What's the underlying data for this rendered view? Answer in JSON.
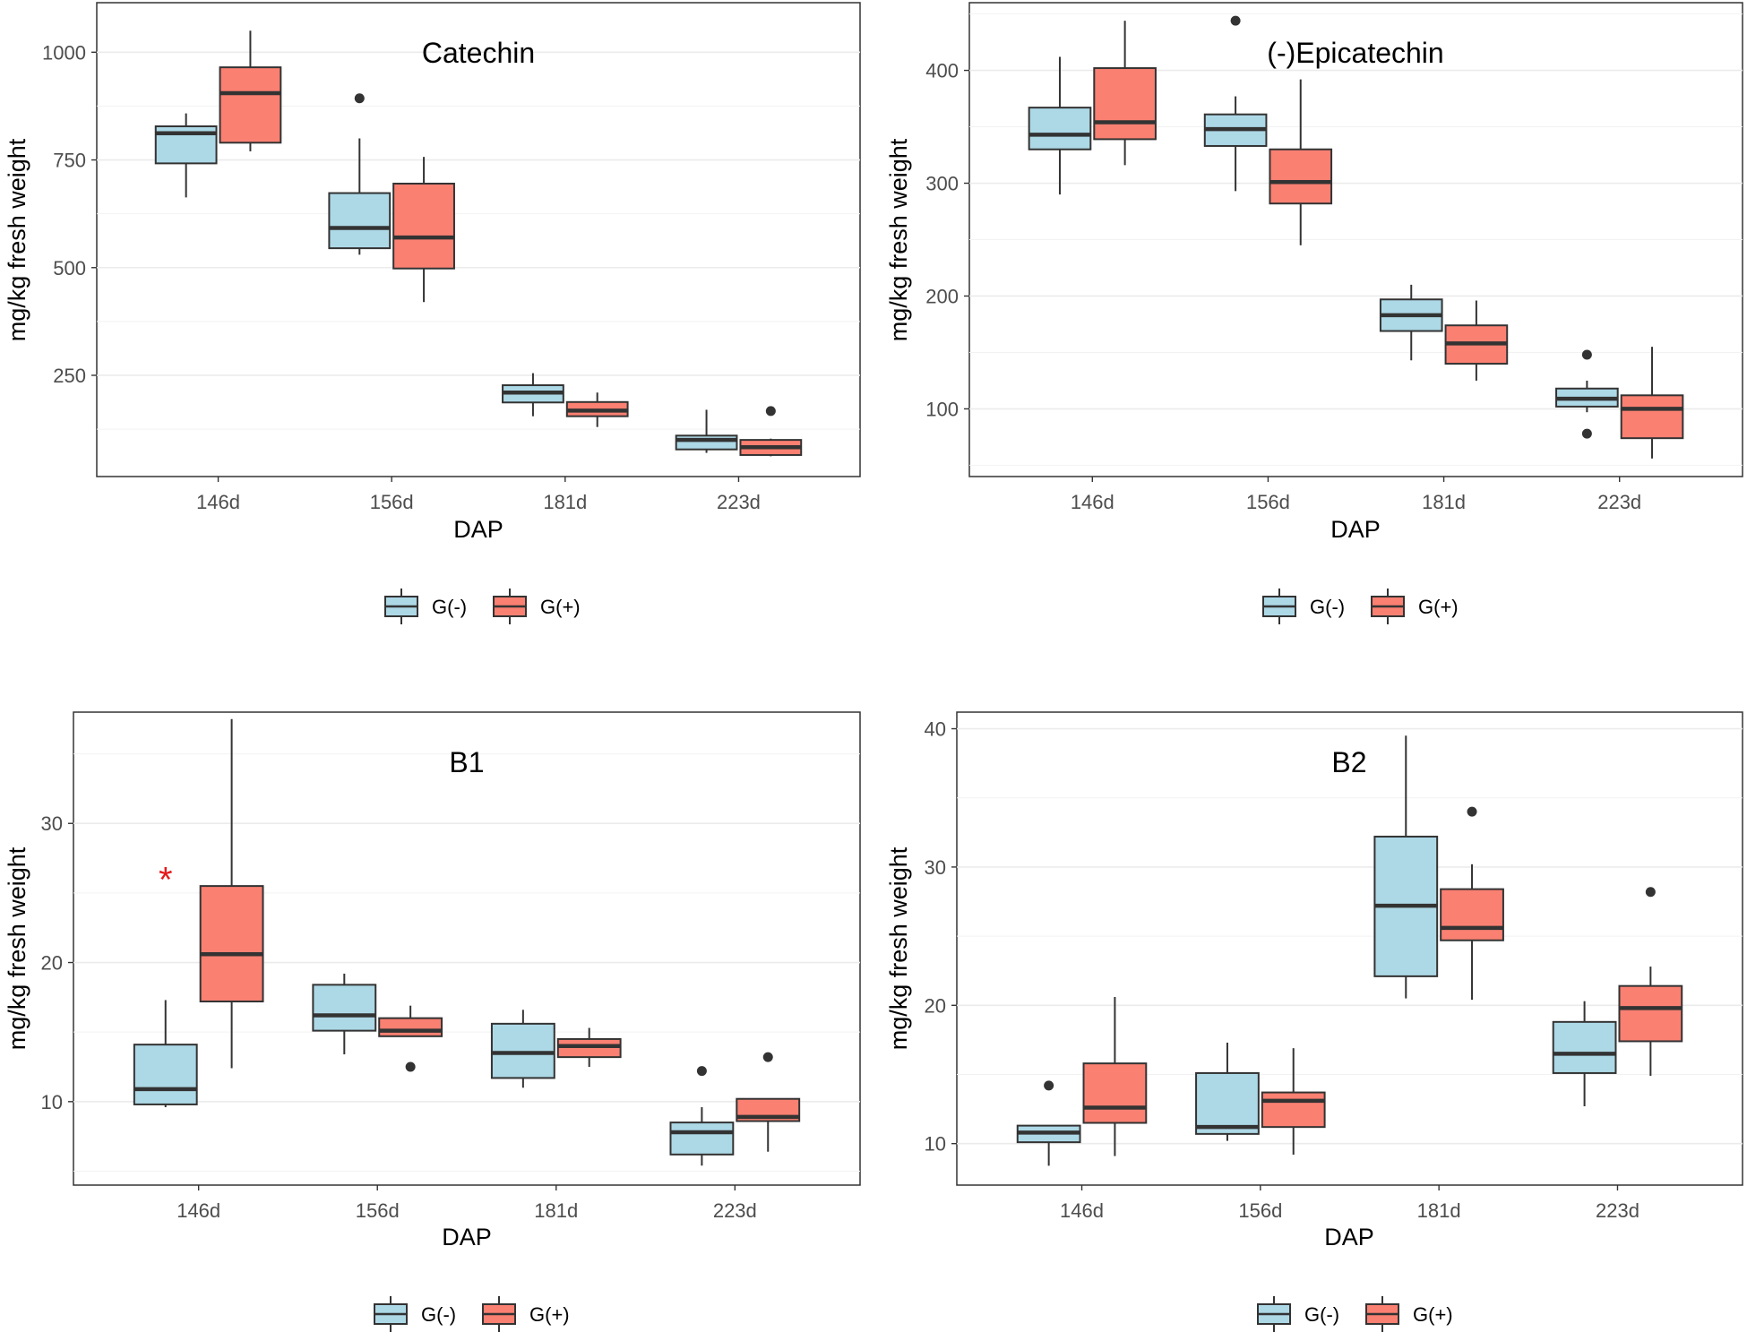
{
  "colors": {
    "g_minus": "#add8e6",
    "g_plus": "#fa8072",
    "box_stroke": "#333333",
    "grid": "#ebebeb",
    "panel_border": "#333333",
    "annotation": "#e41a1c"
  },
  "chart_data": [
    {
      "type": "box",
      "title": "Catechin",
      "xlabel": "DAP",
      "ylabel": "mg/kg fresh weight",
      "categories": [
        "146d",
        "156d",
        "181d",
        "223d"
      ],
      "yticks": [
        "250",
        "500",
        "750",
        "1000"
      ],
      "ylim": [
        15,
        1115
      ],
      "legend": [
        "G(-)",
        "G(+)"
      ],
      "series": [
        {
          "name": "G(-)",
          "boxes": [
            {
              "min": 663,
              "q1": 742,
              "median": 812,
              "q3": 828,
              "max": 858,
              "outliers": []
            },
            {
              "min": 530,
              "q1": 545,
              "median": 592,
              "q3": 673,
              "max": 800,
              "outliers": [
                893
              ]
            },
            {
              "min": 155,
              "q1": 187,
              "median": 210,
              "q3": 227,
              "max": 255,
              "outliers": []
            },
            {
              "min": 70,
              "q1": 78,
              "median": 100,
              "q3": 110,
              "max": 170,
              "outliers": []
            }
          ]
        },
        {
          "name": "G(+)",
          "boxes": [
            {
              "min": 770,
              "q1": 790,
              "median": 905,
              "q3": 965,
              "max": 1050,
              "outliers": []
            },
            {
              "min": 420,
              "q1": 498,
              "median": 570,
              "q3": 695,
              "max": 757,
              "outliers": []
            },
            {
              "min": 130,
              "q1": 155,
              "median": 168,
              "q3": 188,
              "max": 210,
              "outliers": []
            },
            {
              "min": 62,
              "q1": 65,
              "median": 83,
              "q3": 100,
              "max": 103,
              "outliers": [
                167
              ]
            }
          ]
        }
      ],
      "annotations": []
    },
    {
      "type": "box",
      "title": "(-)Epicatechin",
      "xlabel": "DAP",
      "ylabel": "mg/kg fresh weight",
      "categories": [
        "146d",
        "156d",
        "181d",
        "223d"
      ],
      "yticks": [
        "100",
        "200",
        "300",
        "400"
      ],
      "ylim": [
        40,
        460
      ],
      "legend": [
        "G(-)",
        "G(+)"
      ],
      "series": [
        {
          "name": "G(-)",
          "boxes": [
            {
              "min": 290,
              "q1": 330,
              "median": 343,
              "q3": 367,
              "max": 412,
              "outliers": []
            },
            {
              "min": 293,
              "q1": 333,
              "median": 348,
              "q3": 361,
              "max": 377,
              "outliers": [
                444
              ]
            },
            {
              "min": 143,
              "q1": 169,
              "median": 183,
              "q3": 197,
              "max": 210,
              "outliers": []
            },
            {
              "min": 97,
              "q1": 102,
              "median": 109,
              "q3": 118,
              "max": 125,
              "outliers": [
                148,
                78
              ]
            }
          ]
        },
        {
          "name": "G(+)",
          "boxes": [
            {
              "min": 316,
              "q1": 339,
              "median": 354,
              "q3": 402,
              "max": 444,
              "outliers": []
            },
            {
              "min": 245,
              "q1": 282,
              "median": 301,
              "q3": 330,
              "max": 392,
              "outliers": []
            },
            {
              "min": 125,
              "q1": 140,
              "median": 158,
              "q3": 174,
              "max": 196,
              "outliers": []
            },
            {
              "min": 56,
              "q1": 74,
              "median": 100,
              "q3": 112,
              "max": 155,
              "outliers": []
            }
          ]
        }
      ],
      "annotations": []
    },
    {
      "type": "box",
      "title": "B1",
      "xlabel": "DAP",
      "ylabel": "mg/kg fresh weight",
      "categories": [
        "146d",
        "156d",
        "181d",
        "223d"
      ],
      "yticks": [
        "10",
        "20",
        "30"
      ],
      "ylim": [
        4,
        38
      ],
      "legend": [
        "G(-)",
        "G(+)"
      ],
      "series": [
        {
          "name": "G(-)",
          "boxes": [
            {
              "min": 9.6,
              "q1": 9.8,
              "median": 10.9,
              "q3": 14.1,
              "max": 17.3,
              "outliers": []
            },
            {
              "min": 13.4,
              "q1": 15.1,
              "median": 16.2,
              "q3": 18.4,
              "max": 19.2,
              "outliers": []
            },
            {
              "min": 11.0,
              "q1": 11.7,
              "median": 13.5,
              "q3": 15.6,
              "max": 16.6,
              "outliers": []
            },
            {
              "min": 5.4,
              "q1": 6.2,
              "median": 7.8,
              "q3": 8.5,
              "max": 9.6,
              "outliers": [
                12.2
              ]
            }
          ]
        },
        {
          "name": "G(+)",
          "boxes": [
            {
              "min": 12.4,
              "q1": 17.2,
              "median": 20.6,
              "q3": 25.5,
              "max": 37.5,
              "outliers": []
            },
            {
              "min": 14.7,
              "q1": 14.7,
              "median": 15.1,
              "q3": 16.0,
              "max": 16.9,
              "outliers": [
                12.5
              ]
            },
            {
              "min": 12.5,
              "q1": 13.2,
              "median": 14.0,
              "q3": 14.5,
              "max": 15.3,
              "outliers": []
            },
            {
              "min": 6.4,
              "q1": 8.6,
              "median": 8.9,
              "q3": 10.2,
              "max": 10.2,
              "outliers": [
                13.2
              ]
            }
          ]
        }
      ],
      "annotations": [
        {
          "text": "*",
          "category": "146d",
          "y": 26.5
        }
      ]
    },
    {
      "type": "box",
      "title": "B2",
      "xlabel": "DAP",
      "ylabel": "mg/kg fresh weight",
      "categories": [
        "146d",
        "156d",
        "181d",
        "223d"
      ],
      "yticks": [
        "10",
        "20",
        "30",
        "40"
      ],
      "ylim": [
        7,
        41.2
      ],
      "legend": [
        "G(-)",
        "G(+)"
      ],
      "series": [
        {
          "name": "G(-)",
          "boxes": [
            {
              "min": 8.4,
              "q1": 10.1,
              "median": 10.8,
              "q3": 11.3,
              "max": 11.3,
              "outliers": [
                14.2
              ]
            },
            {
              "min": 10.2,
              "q1": 10.7,
              "median": 11.2,
              "q3": 15.1,
              "max": 17.3,
              "outliers": []
            },
            {
              "min": 20.5,
              "q1": 22.1,
              "median": 27.2,
              "q3": 32.2,
              "max": 39.5,
              "outliers": []
            },
            {
              "min": 12.7,
              "q1": 15.1,
              "median": 16.5,
              "q3": 18.8,
              "max": 20.3,
              "outliers": []
            }
          ]
        },
        {
          "name": "G(+)",
          "boxes": [
            {
              "min": 9.1,
              "q1": 11.5,
              "median": 12.6,
              "q3": 15.8,
              "max": 20.6,
              "outliers": []
            },
            {
              "min": 9.2,
              "q1": 11.2,
              "median": 13.1,
              "q3": 13.7,
              "max": 16.9,
              "outliers": []
            },
            {
              "min": 20.4,
              "q1": 24.7,
              "median": 25.6,
              "q3": 28.4,
              "max": 30.2,
              "outliers": [
                34.0
              ]
            },
            {
              "min": 14.9,
              "q1": 17.4,
              "median": 19.8,
              "q3": 21.4,
              "max": 22.8,
              "outliers": [
                28.2
              ]
            }
          ]
        }
      ],
      "annotations": []
    }
  ]
}
